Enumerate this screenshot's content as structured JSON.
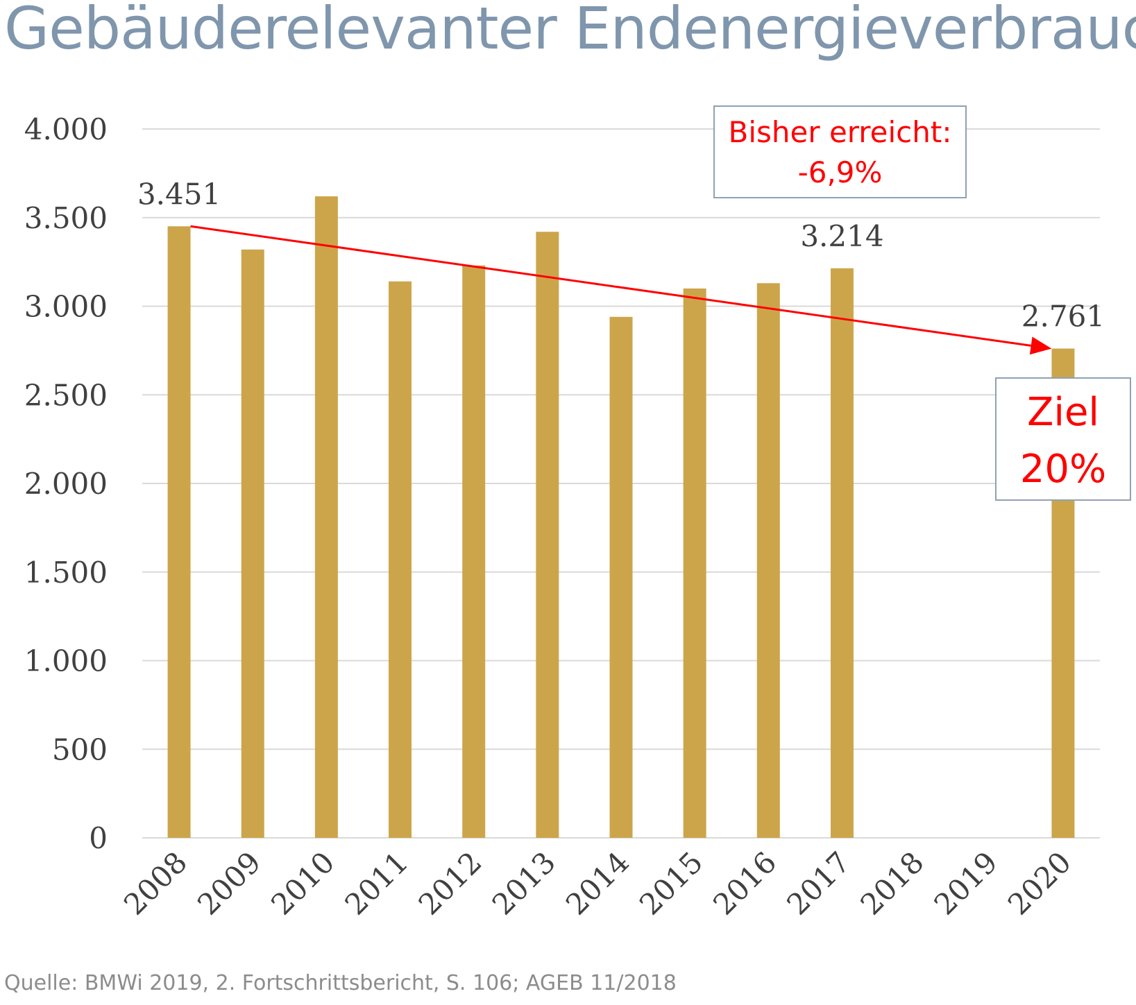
{
  "title": "Gebäuderelevanter Endenergieverbrauch",
  "source": "Quelle: BMWi 2019, 2. Fortschrittsbericht, S. 106; AGEB 11/2018",
  "annotations": {
    "achieved_line1": "Bisher erreicht:",
    "achieved_line2": "-6,9%",
    "goal_line1": "Ziel",
    "goal_line2": "20%"
  },
  "colors": {
    "bar": "#cca54b",
    "trend": "#ff0000",
    "title": "#7f96ad",
    "grid": "#d9d9d9"
  },
  "chart_data": {
    "type": "bar",
    "categories": [
      "2008",
      "2009",
      "2010",
      "2011",
      "2012",
      "2013",
      "2014",
      "2015",
      "2016",
      "2017",
      "2018",
      "2019",
      "2020"
    ],
    "values": [
      3451,
      3320,
      3620,
      3140,
      3230,
      3420,
      2940,
      3100,
      3130,
      3214,
      null,
      null,
      2761
    ],
    "data_labels": [
      {
        "category": "2008",
        "text": "3.451"
      },
      {
        "category": "2017",
        "text": "3.214"
      },
      {
        "category": "2020",
        "text": "2.761"
      }
    ],
    "yticks": [
      {
        "value": 0,
        "label": "0"
      },
      {
        "value": 500,
        "label": "500"
      },
      {
        "value": 1000,
        "label": "1.000"
      },
      {
        "value": 1500,
        "label": "1.500"
      },
      {
        "value": 2000,
        "label": "2.000"
      },
      {
        "value": 2500,
        "label": "2.500"
      },
      {
        "value": 3000,
        "label": "3.000"
      },
      {
        "value": 3500,
        "label": "3.500"
      },
      {
        "value": 4000,
        "label": "4.000"
      }
    ],
    "ylim": [
      0,
      4000
    ],
    "trend_arrow": {
      "from": {
        "category": "2008",
        "value": 3451
      },
      "to": {
        "category": "2020",
        "value": 2761
      }
    },
    "grid": true,
    "xlabel": "",
    "ylabel": ""
  }
}
